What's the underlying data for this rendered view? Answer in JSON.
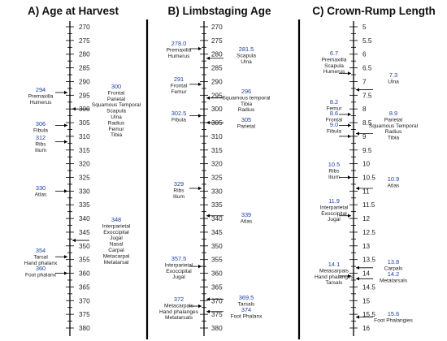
{
  "panels": [
    {
      "title": "A) Age at Harvest",
      "ticks": [
        "270",
        "275",
        "280",
        "285",
        "290",
        "295",
        "300",
        "305",
        "310",
        "315",
        "320",
        "325",
        "330",
        "335",
        "340",
        "345",
        "350",
        "355",
        "360",
        "365",
        "370",
        "375",
        "380"
      ],
      "events": [
        {
          "value": "294",
          "labels": [
            "Premaxilla",
            "Humerus"
          ],
          "side": "left",
          "pos": 294
        },
        {
          "value": "300",
          "labels": [
            "Frontal",
            "Parietal",
            "Squamous Temporal",
            "Scapula",
            "Ulna",
            "Radius",
            "Femur",
            "Tibia"
          ],
          "side": "right",
          "pos": 300
        },
        {
          "value": "306",
          "labels": [
            "Fibula"
          ],
          "side": "left",
          "pos": 306
        },
        {
          "value": "312",
          "labels": [
            "Ribs",
            "Ilium"
          ],
          "side": "left",
          "pos": 312
        },
        {
          "value": "330",
          "labels": [
            "Atlas"
          ],
          "side": "left",
          "pos": 330
        },
        {
          "value": "348",
          "labels": [
            "Interparietal",
            "Exoccipital",
            "Jugal",
            "Nasal",
            "Carpal",
            "Metacarpal",
            "Metatarsal"
          ],
          "side": "right",
          "pos": 348
        },
        {
          "value": "354",
          "labels": [
            "Tarsal",
            "Hand phalanx"
          ],
          "side": "left",
          "pos": 354
        },
        {
          "value": "360",
          "labels": [
            "Foot phalanx"
          ],
          "side": "left",
          "pos": 360
        }
      ]
    },
    {
      "title": "B) Limbstaging Age",
      "ticks": [
        "270",
        "275",
        "280",
        "285",
        "290",
        "295",
        "300",
        "305",
        "310",
        "315",
        "320",
        "325",
        "330",
        "335",
        "340",
        "345",
        "350",
        "355",
        "360",
        "365",
        "370",
        "375",
        "380"
      ],
      "events": [
        {
          "value": "278.0",
          "labels": [
            "Premaxilla",
            "Humerus"
          ],
          "side": "left",
          "pos": 278
        },
        {
          "value": "281.5",
          "labels": [
            "Scapula",
            "Ulna"
          ],
          "side": "right",
          "pos": 281.5
        },
        {
          "value": "291",
          "labels": [
            "Frontal",
            "Femur"
          ],
          "side": "left",
          "pos": 291
        },
        {
          "value": "296",
          "labels": [
            "Squamous temporal",
            "Tibia",
            "Radius"
          ],
          "side": "right",
          "pos": 296
        },
        {
          "value": "302.5",
          "labels": [
            "Fibula"
          ],
          "side": "left",
          "pos": 302.5
        },
        {
          "value": "305",
          "labels": [
            "Parietal"
          ],
          "side": "right",
          "pos": 305
        },
        {
          "value": "329",
          "labels": [
            "Ribs",
            "Ilium"
          ],
          "side": "left",
          "pos": 329
        },
        {
          "value": "339",
          "labels": [
            "Atlas"
          ],
          "side": "right",
          "pos": 339
        },
        {
          "value": "357.5",
          "labels": [
            "Interparietal",
            "Exoccipital",
            "Jugal"
          ],
          "side": "left",
          "pos": 357.5
        },
        {
          "value": "369.5",
          "labels": [
            "Tarsals"
          ],
          "side": "right",
          "pos": 369.5
        },
        {
          "value": "372",
          "labels": [
            "Metacarpals",
            "Hand phalanges",
            "Metatarsals"
          ],
          "side": "left",
          "pos": 372
        },
        {
          "value": "374",
          "labels": [
            "Foot Phalanx"
          ],
          "side": "right",
          "pos": 374
        }
      ]
    },
    {
      "title": "C) Crown-Rump Length",
      "ticks": [
        "5",
        "5.5",
        "6",
        "6.5",
        "7",
        "7.5",
        "8",
        "8.5",
        "9",
        "9.5",
        "10",
        "10.5",
        "11",
        "11.5",
        "12",
        "12.5",
        "13",
        "13.5",
        "14",
        "14.5",
        "15",
        "15.5",
        "16"
      ],
      "events": [
        {
          "value": "6.7",
          "labels": [
            "Premaxilla",
            "Scapula",
            "Humerus"
          ],
          "side": "left",
          "pos": 6.7
        },
        {
          "value": "7.3",
          "labels": [
            "Ulna"
          ],
          "side": "right",
          "pos": 7.3
        },
        {
          "value": "8.2",
          "labels": [
            "Femur"
          ],
          "side": "left",
          "pos": 8.2
        },
        {
          "value": "8.6",
          "labels": [
            "Frontal"
          ],
          "side": "left",
          "pos": 8.6
        },
        {
          "value": "9.0",
          "labels": [
            "Fibula"
          ],
          "side": "left",
          "pos": 9.0
        },
        {
          "value": "8.9",
          "labels": [
            "Parietal",
            "Squamous Temporal",
            "Radius",
            "Tibia"
          ],
          "side": "right",
          "pos": 8.9
        },
        {
          "value": "10.5",
          "labels": [
            "Ribs",
            "Ilium"
          ],
          "side": "left",
          "pos": 10.5
        },
        {
          "value": "10.9",
          "labels": [
            "Atlas"
          ],
          "side": "right",
          "pos": 10.9
        },
        {
          "value": "11.9",
          "labels": [
            "Interparietal",
            "Exoccipital",
            "Jugal"
          ],
          "side": "left",
          "pos": 11.9
        },
        {
          "value": "13.8",
          "labels": [
            "Carpals"
          ],
          "side": "right",
          "pos": 13.8
        },
        {
          "value": "14.1",
          "labels": [
            "Metacarpals",
            "Hand phalanges",
            "Tarsals"
          ],
          "side": "left",
          "pos": 14.1
        },
        {
          "value": "14.2",
          "labels": [
            "Metatarsals"
          ],
          "side": "right",
          "pos": 14.2
        },
        {
          "value": "15.6",
          "labels": [
            "Foot Phalangies"
          ],
          "side": "right",
          "pos": 15.6
        }
      ]
    }
  ]
}
